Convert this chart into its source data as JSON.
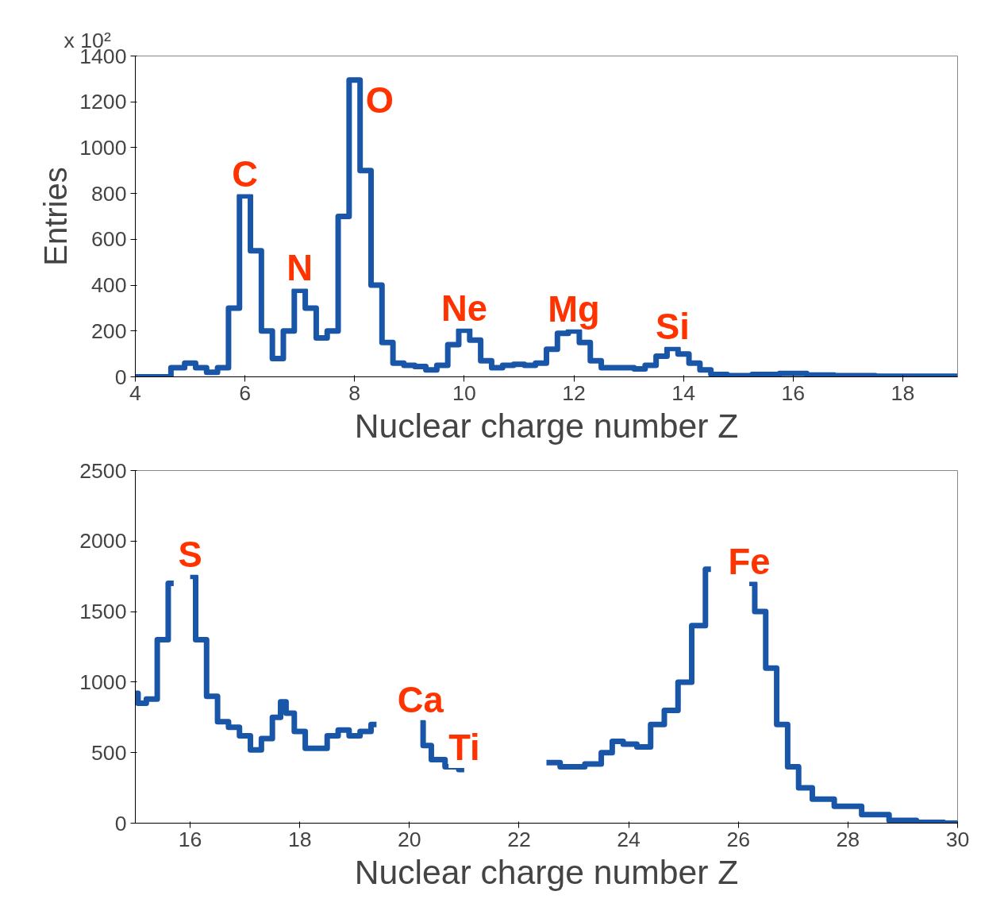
{
  "chart_data": [
    {
      "type": "step",
      "xlabel": "Nuclear charge number Z",
      "ylabel": "Entries",
      "xlim": [
        4,
        19
      ],
      "ylim": [
        0,
        1400
      ],
      "xticks": [
        4,
        6,
        8,
        10,
        12,
        14,
        16,
        18
      ],
      "yticks": [
        0,
        200,
        400,
        600,
        800,
        1000,
        1200,
        1400
      ],
      "grid": false,
      "annotations": [
        "x 10²",
        {
          "text": "C",
          "x": 6,
          "y": 790
        },
        {
          "text": "N",
          "x": 7,
          "y": 378
        },
        {
          "text": "O",
          "x": 8,
          "y": 1295
        },
        {
          "text": "Ne",
          "x": 10,
          "y": 204
        },
        {
          "text": "Mg",
          "x": 12,
          "y": 200
        },
        {
          "text": "Si",
          "x": 13.8,
          "y": 124
        }
      ],
      "x": [
        4,
        4.5,
        4.8,
        5.0,
        5.2,
        5.4,
        5.6,
        5.8,
        6.0,
        6.2,
        6.4,
        6.6,
        6.8,
        7.0,
        7.2,
        7.4,
        7.6,
        7.8,
        8.0,
        8.2,
        8.4,
        8.6,
        8.8,
        9.0,
        9.2,
        9.4,
        9.6,
        9.8,
        10.0,
        10.2,
        10.4,
        10.6,
        10.8,
        11.0,
        11.2,
        11.4,
        11.6,
        11.8,
        12.0,
        12.2,
        12.4,
        12.6,
        12.8,
        13.0,
        13.2,
        13.4,
        13.6,
        13.8,
        14.0,
        14.2,
        14.4,
        14.6,
        15,
        15.5,
        16,
        16.5,
        17,
        18,
        19
      ],
      "series": [
        {
          "color": "#1a56a8",
          "values": [
            0,
            0,
            40,
            60,
            40,
            20,
            40,
            300,
            790,
            550,
            200,
            80,
            200,
            378,
            300,
            170,
            200,
            700,
            1295,
            900,
            400,
            150,
            60,
            50,
            45,
            30,
            50,
            140,
            204,
            160,
            70,
            40,
            50,
            55,
            50,
            60,
            120,
            190,
            200,
            150,
            70,
            40,
            40,
            40,
            35,
            50,
            90,
            124,
            100,
            60,
            30,
            10,
            5,
            10,
            15,
            8,
            5,
            3,
            3
          ]
        }
      ]
    },
    {
      "type": "step",
      "xlabel": "Nuclear charge number Z",
      "xlim": [
        15,
        30
      ],
      "ylim": [
        0,
        2500
      ],
      "xticks": [
        16,
        18,
        20,
        22,
        24,
        26,
        28,
        30
      ],
      "yticks": [
        0,
        500,
        1000,
        1500,
        2000,
        2500
      ],
      "grid": false,
      "annotations": [
        {
          "text": "S",
          "x": 16.0,
          "y": 1750
        },
        {
          "text": "Ca",
          "x": 20.2,
          "y": 720
        },
        {
          "text": "Ti",
          "x": 21.0,
          "y": 380
        },
        {
          "text": "Fe",
          "x": 26.2,
          "y": 1700
        }
      ],
      "x": [
        15.0,
        15.1,
        15.3,
        15.5,
        15.7,
        15.8,
        15.9,
        16.0,
        16.2,
        16.4,
        16.6,
        16.8,
        17.0,
        17.2,
        17.4,
        17.6,
        17.7,
        17.8,
        18.0,
        18.2,
        18.4,
        18.6,
        18.8,
        19.0,
        19.2,
        19.4,
        19.6,
        19.8,
        20.0,
        20.2,
        20.3,
        20.5,
        20.8,
        21.0,
        21.2,
        21.6,
        22.0,
        22.3,
        22.5,
        23.0,
        23.4,
        23.6,
        23.8,
        24.0,
        24.3,
        24.5,
        24.8,
        25.0,
        25.3,
        25.5,
        25.7,
        25.9,
        26.1,
        26.2,
        26.4,
        26.6,
        26.8,
        27.0,
        27.2,
        27.5,
        28.0,
        28.5,
        29.0,
        29.5,
        30.0
      ],
      "series": [
        {
          "color": "#1a56a8",
          "values": [
            920,
            850,
            880,
            1300,
            1700,
            null,
            null,
            1750,
            1300,
            900,
            720,
            680,
            620,
            520,
            600,
            750,
            860,
            780,
            650,
            530,
            530,
            620,
            660,
            620,
            650,
            700,
            null,
            null,
            null,
            720,
            550,
            450,
            400,
            380,
            null,
            null,
            null,
            null,
            430,
            400,
            420,
            500,
            580,
            560,
            540,
            700,
            800,
            1000,
            1400,
            1800,
            null,
            null,
            null,
            1700,
            1500,
            1100,
            700,
            400,
            250,
            170,
            120,
            60,
            20,
            5,
            0
          ]
        }
      ]
    }
  ]
}
